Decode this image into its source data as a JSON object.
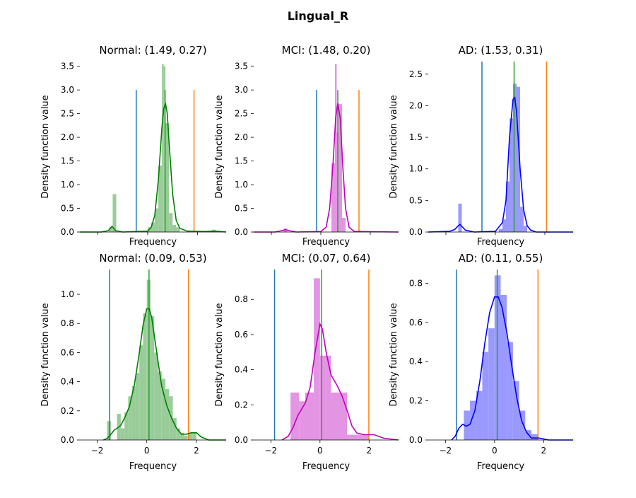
{
  "figure": {
    "title": "Lingual_R"
  },
  "colors": {
    "normal": "#008000",
    "normal_hist": "#99cc99",
    "mci": "#bf00bf",
    "mci_hist": "#e394e3",
    "ad": "#0000ff",
    "ad_hist": "#9999ff",
    "line_low": "#1f77b4",
    "line_high": "#ff7f0e",
    "line_mean": "#2ca02c"
  },
  "chart_data": [
    {
      "type": "histogram+kde",
      "title": "Normal: (1.49, 0.27)",
      "xlabel": "Frequency",
      "ylabel": "Density function value",
      "xlim": [
        -0.9,
        3.2
      ],
      "ylim": [
        0,
        3.6
      ],
      "yticks": [
        "0.0",
        "0.5",
        "1.0",
        "1.5",
        "2.0",
        "2.5",
        "3.0",
        "3.5"
      ],
      "xticks": [],
      "color_key": "normal",
      "vlines": [
        {
          "x": 0.68,
          "ymax": 3.0,
          "role": "low"
        },
        {
          "x": 1.49,
          "ymax": 3.0,
          "role": "mean"
        },
        {
          "x": 2.3,
          "ymax": 3.0,
          "role": "high"
        }
      ],
      "hist": [
        [
          -0.08,
          0.02,
          0.1
        ],
        [
          0.02,
          0.12,
          0.8
        ],
        [
          1.0,
          1.1,
          0.1
        ],
        [
          1.1,
          1.2,
          0.2
        ],
        [
          1.2,
          1.3,
          0.5
        ],
        [
          1.3,
          1.4,
          1.4
        ],
        [
          1.4,
          1.45,
          3.55
        ],
        [
          1.45,
          1.5,
          3.5
        ],
        [
          1.5,
          1.6,
          2.3
        ],
        [
          1.6,
          1.7,
          0.4
        ],
        [
          1.7,
          1.8,
          0.15
        ],
        [
          1.8,
          1.9,
          0.1
        ],
        [
          2.5,
          2.6,
          0.02
        ],
        [
          2.8,
          2.9,
          0.05
        ]
      ],
      "kde": [
        [
          -0.9,
          0
        ],
        [
          -0.3,
          0
        ],
        [
          -0.1,
          0.03
        ],
        [
          0.0,
          0.12
        ],
        [
          0.1,
          0.03
        ],
        [
          0.3,
          0
        ],
        [
          1.0,
          0.02
        ],
        [
          1.1,
          0.1
        ],
        [
          1.2,
          0.35
        ],
        [
          1.3,
          1.1
        ],
        [
          1.4,
          2.2
        ],
        [
          1.45,
          2.6
        ],
        [
          1.5,
          2.72
        ],
        [
          1.55,
          2.5
        ],
        [
          1.6,
          1.9
        ],
        [
          1.7,
          0.8
        ],
        [
          1.8,
          0.25
        ],
        [
          1.9,
          0.08
        ],
        [
          2.1,
          0.02
        ],
        [
          2.6,
          0.01
        ],
        [
          2.9,
          0.02
        ],
        [
          3.2,
          0
        ]
      ]
    },
    {
      "type": "histogram+kde",
      "title": "MCI: (1.48, 0.20)",
      "xlabel": "Frequency",
      "ylabel": "Density function value",
      "xlim": [
        -0.9,
        3.2
      ],
      "ylim": [
        0,
        3.6
      ],
      "yticks": [
        "0.0",
        "0.5",
        "1.0",
        "1.5",
        "2.0",
        "2.5",
        "3.0",
        "3.5"
      ],
      "xticks": [],
      "color_key": "mci",
      "vlines": [
        {
          "x": 0.88,
          "ymax": 3.0,
          "role": "low"
        },
        {
          "x": 1.48,
          "ymax": 3.0,
          "role": "mean"
        },
        {
          "x": 2.08,
          "ymax": 3.0,
          "role": "high"
        }
      ],
      "hist": [
        [
          -0.05,
          0.05,
          0.08
        ],
        [
          1.3,
          1.4,
          1.45
        ],
        [
          1.4,
          1.45,
          3.55
        ],
        [
          1.45,
          1.5,
          2.1
        ],
        [
          1.5,
          1.6,
          2.7
        ],
        [
          1.6,
          1.7,
          0.3
        ]
      ],
      "kde": [
        [
          -0.9,
          0
        ],
        [
          -0.3,
          0
        ],
        [
          -0.1,
          0.03
        ],
        [
          0.0,
          0.05
        ],
        [
          0.1,
          0.03
        ],
        [
          0.3,
          0
        ],
        [
          1.0,
          0.01
        ],
        [
          1.15,
          0.1
        ],
        [
          1.25,
          0.5
        ],
        [
          1.35,
          1.5
        ],
        [
          1.42,
          2.4
        ],
        [
          1.48,
          2.72
        ],
        [
          1.55,
          2.4
        ],
        [
          1.62,
          1.4
        ],
        [
          1.7,
          0.5
        ],
        [
          1.8,
          0.1
        ],
        [
          1.95,
          0.01
        ],
        [
          3.2,
          0
        ]
      ]
    },
    {
      "type": "histogram+kde",
      "title": "AD: (1.53, 0.31)",
      "xlabel": "Frequency",
      "ylabel": "Density function value",
      "xlim": [
        -0.9,
        3.2
      ],
      "ylim": [
        0,
        2.7
      ],
      "yticks": [
        "0.0",
        "0.5",
        "1.0",
        "1.5",
        "2.0",
        "2.5"
      ],
      "xticks": [],
      "color_key": "ad",
      "vlines": [
        {
          "x": 0.62,
          "ymax": 2.7,
          "role": "low"
        },
        {
          "x": 1.53,
          "ymax": 2.7,
          "role": "mean"
        },
        {
          "x": 2.45,
          "ymax": 2.7,
          "role": "high"
        }
      ],
      "hist": [
        [
          -0.05,
          0.05,
          0.45
        ],
        [
          1.1,
          1.2,
          0.05
        ],
        [
          1.2,
          1.3,
          0.2
        ],
        [
          1.3,
          1.4,
          0.8
        ],
        [
          1.4,
          1.5,
          1.8
        ],
        [
          1.5,
          1.6,
          2.35
        ],
        [
          1.6,
          1.7,
          2.3
        ],
        [
          1.7,
          1.8,
          0.4
        ],
        [
          1.8,
          1.9,
          0.1
        ]
      ],
      "kde": [
        [
          -0.9,
          0
        ],
        [
          -0.3,
          0.01
        ],
        [
          -0.15,
          0.04
        ],
        [
          -0.05,
          0.1
        ],
        [
          0.0,
          0.12
        ],
        [
          0.05,
          0.09
        ],
        [
          0.15,
          0.03
        ],
        [
          0.4,
          0
        ],
        [
          1.0,
          0.01
        ],
        [
          1.2,
          0.15
        ],
        [
          1.3,
          0.5
        ],
        [
          1.4,
          1.5
        ],
        [
          1.5,
          2.1
        ],
        [
          1.55,
          2.13
        ],
        [
          1.6,
          1.9
        ],
        [
          1.7,
          1.0
        ],
        [
          1.8,
          0.35
        ],
        [
          1.9,
          0.1
        ],
        [
          2.0,
          0.03
        ],
        [
          2.15,
          0
        ],
        [
          3.2,
          0
        ]
      ]
    },
    {
      "type": "histogram+kde",
      "title": "Normal: (0.09, 0.53)",
      "xlabel": "Frequency",
      "ylabel": "Density function value",
      "xlim": [
        -2.7,
        3.2
      ],
      "ylim": [
        0,
        1.17
      ],
      "yticks": [
        "0.0",
        "0.2",
        "0.4",
        "0.6",
        "0.8",
        "1.0"
      ],
      "xticks": [
        "−2",
        "0",
        "2"
      ],
      "xtick_values": [
        -2,
        0,
        2
      ],
      "color_key": "normal",
      "vlines": [
        {
          "x": -1.5,
          "ymax": 1.17,
          "role": "low"
        },
        {
          "x": 0.09,
          "ymax": 1.17,
          "role": "mean"
        },
        {
          "x": 1.68,
          "ymax": 1.17,
          "role": "high"
        }
      ],
      "hist": [
        [
          -1.6,
          -1.45,
          0.13
        ],
        [
          -1.2,
          -1.05,
          0.18
        ],
        [
          -1.05,
          -0.9,
          0.08
        ],
        [
          -0.9,
          -0.75,
          0.19
        ],
        [
          -0.75,
          -0.6,
          0.3
        ],
        [
          -0.6,
          -0.45,
          0.37
        ],
        [
          -0.45,
          -0.3,
          0.46
        ],
        [
          -0.3,
          -0.15,
          0.65
        ],
        [
          -0.15,
          0.0,
          0.87
        ],
        [
          0.0,
          0.15,
          1.1
        ],
        [
          0.15,
          0.3,
          0.85
        ],
        [
          0.3,
          0.45,
          0.6
        ],
        [
          0.45,
          0.6,
          0.47
        ],
        [
          0.6,
          0.75,
          0.42
        ],
        [
          0.75,
          0.9,
          0.35
        ],
        [
          0.9,
          1.05,
          0.3
        ],
        [
          1.05,
          1.2,
          0.15
        ],
        [
          1.2,
          1.35,
          0.08
        ],
        [
          1.35,
          1.5,
          0.05
        ],
        [
          1.5,
          1.65,
          0.03
        ],
        [
          1.7,
          1.85,
          0.05
        ],
        [
          1.85,
          2.0,
          0.05
        ]
      ],
      "kde": [
        [
          -1.75,
          0
        ],
        [
          -1.6,
          0.01
        ],
        [
          -1.45,
          0.04
        ],
        [
          -1.3,
          0.07
        ],
        [
          -1.2,
          0.08
        ],
        [
          -1.05,
          0.1
        ],
        [
          -0.9,
          0.15
        ],
        [
          -0.7,
          0.23
        ],
        [
          -0.5,
          0.38
        ],
        [
          -0.3,
          0.6
        ],
        [
          -0.15,
          0.79
        ],
        [
          0.0,
          0.9
        ],
        [
          0.1,
          0.9
        ],
        [
          0.2,
          0.84
        ],
        [
          0.4,
          0.6
        ],
        [
          0.6,
          0.37
        ],
        [
          0.8,
          0.24
        ],
        [
          1.0,
          0.15
        ],
        [
          1.2,
          0.08
        ],
        [
          1.4,
          0.04
        ],
        [
          1.6,
          0.04
        ],
        [
          1.8,
          0.05
        ],
        [
          2.0,
          0.05
        ],
        [
          2.2,
          0.02
        ],
        [
          2.5,
          0
        ],
        [
          3.2,
          0
        ]
      ]
    },
    {
      "type": "histogram+kde",
      "title": "MCI: (0.07, 0.64)",
      "xlabel": "Frequency",
      "ylabel": "Density function value",
      "xlim": [
        -2.7,
        3.2
      ],
      "ylim": [
        0,
        0.97
      ],
      "yticks": [
        "0.0",
        "0.2",
        "0.4",
        "0.6",
        "0.8"
      ],
      "xticks": [
        "−2",
        "0",
        "2"
      ],
      "xtick_values": [
        -2,
        0,
        2
      ],
      "color_key": "mci",
      "vlines": [
        {
          "x": -1.85,
          "ymax": 0.97,
          "role": "low"
        },
        {
          "x": 0.07,
          "ymax": 0.97,
          "role": "mean"
        },
        {
          "x": 1.99,
          "ymax": 0.97,
          "role": "high"
        }
      ],
      "hist": [
        [
          -1.2,
          -0.85,
          0.27
        ],
        [
          -0.85,
          -0.6,
          0.22
        ],
        [
          -0.6,
          -0.25,
          0.27
        ],
        [
          -0.25,
          0.0,
          0.92
        ],
        [
          0.0,
          0.45,
          0.48
        ],
        [
          0.45,
          1.1,
          0.27
        ],
        [
          1.1,
          2.0,
          0.03
        ]
      ],
      "kde": [
        [
          -1.55,
          0
        ],
        [
          -1.3,
          0.02
        ],
        [
          -1.1,
          0.07
        ],
        [
          -0.9,
          0.14
        ],
        [
          -0.6,
          0.21
        ],
        [
          -0.4,
          0.3
        ],
        [
          -0.2,
          0.5
        ],
        [
          0.0,
          0.66
        ],
        [
          0.1,
          0.63
        ],
        [
          0.25,
          0.5
        ],
        [
          0.45,
          0.37
        ],
        [
          0.7,
          0.31
        ],
        [
          0.9,
          0.25
        ],
        [
          1.1,
          0.17
        ],
        [
          1.3,
          0.08
        ],
        [
          1.5,
          0.04
        ],
        [
          1.8,
          0.03
        ],
        [
          2.2,
          0.03
        ],
        [
          2.6,
          0.01
        ],
        [
          3.2,
          0
        ]
      ]
    },
    {
      "type": "histogram+kde",
      "title": "AD: (0.11, 0.55)",
      "xlabel": "Frequency",
      "ylabel": "Density function value",
      "xlim": [
        -2.7,
        3.2
      ],
      "ylim": [
        0,
        0.87
      ],
      "yticks": [
        "0.0",
        "0.2",
        "0.4",
        "0.6",
        "0.8"
      ],
      "xticks": [
        "−2",
        "0",
        "2"
      ],
      "xtick_values": [
        -2,
        0,
        2
      ],
      "color_key": "ad",
      "vlines": [
        {
          "x": -1.55,
          "ymax": 0.87,
          "role": "low"
        },
        {
          "x": 0.11,
          "ymax": 0.87,
          "role": "mean"
        },
        {
          "x": 1.77,
          "ymax": 0.87,
          "role": "high"
        }
      ],
      "hist": [
        [
          -1.25,
          -1.0,
          0.15
        ],
        [
          -1.0,
          -0.75,
          0.2
        ],
        [
          -0.75,
          -0.5,
          0.25
        ],
        [
          -0.5,
          -0.25,
          0.45
        ],
        [
          -0.25,
          0.0,
          0.57
        ],
        [
          0.0,
          0.25,
          0.84
        ],
        [
          0.25,
          0.5,
          0.74
        ],
        [
          0.5,
          0.75,
          0.5
        ],
        [
          0.75,
          1.0,
          0.3
        ],
        [
          1.0,
          1.25,
          0.15
        ],
        [
          1.25,
          1.5,
          0.05
        ],
        [
          1.5,
          1.75,
          0.03
        ]
      ],
      "kde": [
        [
          -1.75,
          0
        ],
        [
          -1.6,
          0.02
        ],
        [
          -1.45,
          0.06
        ],
        [
          -1.3,
          0.08
        ],
        [
          -1.15,
          0.07
        ],
        [
          -1.0,
          0.08
        ],
        [
          -0.8,
          0.15
        ],
        [
          -0.6,
          0.3
        ],
        [
          -0.4,
          0.49
        ],
        [
          -0.2,
          0.65
        ],
        [
          0.0,
          0.73
        ],
        [
          0.15,
          0.73
        ],
        [
          0.3,
          0.68
        ],
        [
          0.5,
          0.55
        ],
        [
          0.7,
          0.38
        ],
        [
          0.9,
          0.22
        ],
        [
          1.1,
          0.1
        ],
        [
          1.3,
          0.04
        ],
        [
          1.5,
          0.01
        ],
        [
          1.8,
          0.01
        ],
        [
          2.2,
          0
        ],
        [
          3.2,
          0
        ]
      ]
    }
  ]
}
